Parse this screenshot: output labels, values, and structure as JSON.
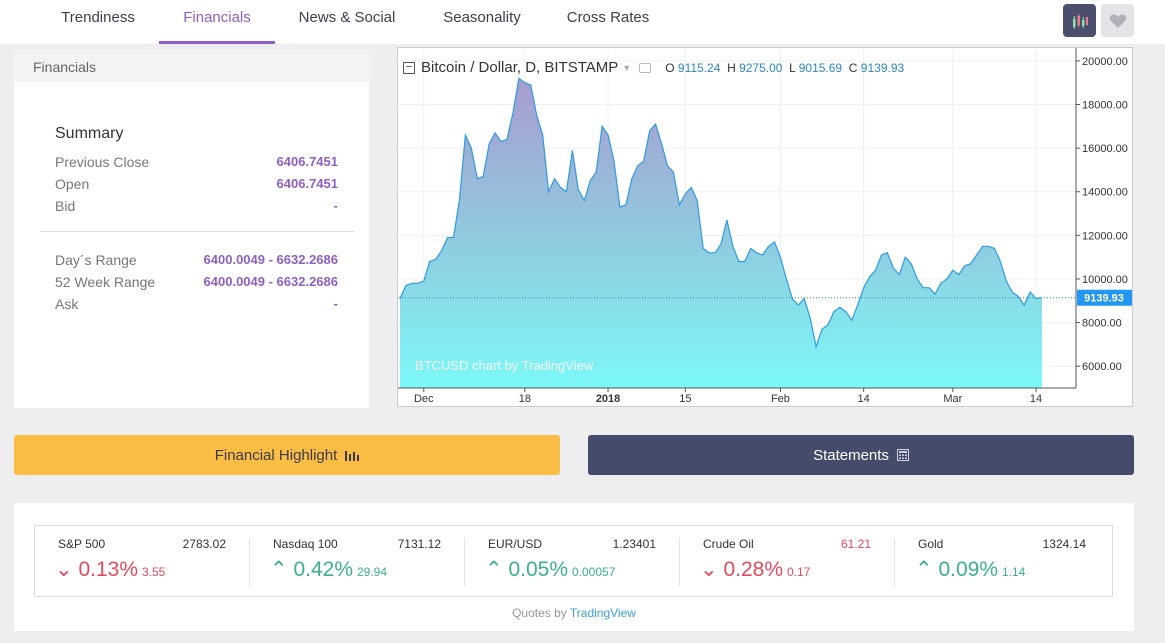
{
  "tabs": [
    "Trendiness",
    "Financials",
    "News & Social",
    "Seasonality",
    "Cross Rates"
  ],
  "icons": {
    "chart": "candlestick-chart-icon",
    "heart": "heart-icon",
    "bars": "bar-chart-icon",
    "calc": "calculator-icon"
  },
  "financials": {
    "header": "Financials",
    "title": "Summary",
    "rows": [
      {
        "label": "Previous Close",
        "value": "6406.7451"
      },
      {
        "label": "Open",
        "value": "6406.7451"
      },
      {
        "label": "Bid",
        "value": "-"
      },
      {
        "label": "Day´s Range",
        "value": "6400.0049 - 6632.2686"
      },
      {
        "label": "52 Week Range",
        "value": "6400.0049 - 6632.2686"
      },
      {
        "label": "Ask",
        "value": "-"
      }
    ]
  },
  "chart": {
    "symbol": "Bitcoin / Dollar, D, BITSTAMP",
    "o_label": "O",
    "o": "9115.24",
    "h_label": "H",
    "h": "9275.00",
    "l_label": "L",
    "l": "9015.69",
    "c_label": "C",
    "c": "9139.93",
    "watermark": "BTCUSD chart by TradingView",
    "last_label": "9139.93"
  },
  "chart_data": {
    "type": "area",
    "ylim": [
      5000,
      20500
    ],
    "y_ticks": [
      "20000.00",
      "18000.00",
      "16000.00",
      "14000.00",
      "12000.00",
      "10000.00",
      "8000.00",
      "6000.00"
    ],
    "y_tick_values": [
      20000,
      18000,
      16000,
      14000,
      12000,
      10000,
      8000,
      6000
    ],
    "x_ticks": [
      "Dec",
      "18",
      "2018",
      "15",
      "Feb",
      "14",
      "Mar",
      "14"
    ],
    "x_tick_index": [
      4,
      21,
      35,
      48,
      64,
      78,
      93,
      107
    ],
    "last_value": 9139.93,
    "values": [
      9100,
      9700,
      9800,
      9800,
      9900,
      10800,
      10900,
      11300,
      11900,
      11900,
      13600,
      16600,
      16000,
      14600,
      14700,
      16200,
      16700,
      16300,
      16400,
      17600,
      19200,
      19000,
      18900,
      17500,
      16600,
      14000,
      14600,
      14200,
      14000,
      15900,
      14100,
      13600,
      14500,
      14900,
      17000,
      16600,
      15400,
      13300,
      13400,
      14600,
      15200,
      15400,
      16800,
      17100,
      16200,
      15200,
      14900,
      13400,
      13900,
      14200,
      13600,
      11400,
      11200,
      11200,
      11600,
      12700,
      11500,
      10800,
      10800,
      11400,
      11200,
      11100,
      11500,
      11700,
      11000,
      10000,
      9100,
      8800,
      9100,
      8200,
      6900,
      7700,
      7900,
      8500,
      8700,
      8500,
      8100,
      8800,
      9600,
      10100,
      10400,
      11100,
      11200,
      10500,
      10200,
      11000,
      10700,
      10000,
      9600,
      9600,
      9300,
      9800,
      10000,
      10400,
      10200,
      10600,
      10700,
      11100,
      11500,
      11500,
      11400,
      10800,
      9900,
      9400,
      9200,
      8800,
      9400,
      9100,
      9139.93
    ]
  },
  "buttons": {
    "highlight": "Financial Highlight",
    "statements": "Statements"
  },
  "quotes": [
    {
      "name": "S&P 500",
      "price": "2783.02",
      "pct": "0.13%",
      "chg": "3.55",
      "dir": "down",
      "price_red": false
    },
    {
      "name": "Nasdaq 100",
      "price": "7131.12",
      "pct": "0.42%",
      "chg": "29.94",
      "dir": "up",
      "price_red": false
    },
    {
      "name": "EUR/USD",
      "price": "1.23401",
      "pct": "0.05%",
      "chg": "0.00057",
      "dir": "up",
      "price_red": false
    },
    {
      "name": "Crude Oil",
      "price": "61.21",
      "pct": "0.28%",
      "chg": "0.17",
      "dir": "down",
      "price_red": true
    },
    {
      "name": "Gold",
      "price": "1324.14",
      "pct": "0.09%",
      "chg": "1.14",
      "dir": "up",
      "price_red": false
    }
  ],
  "credit": {
    "prefix": "Quotes by",
    "link": "TradingView"
  }
}
